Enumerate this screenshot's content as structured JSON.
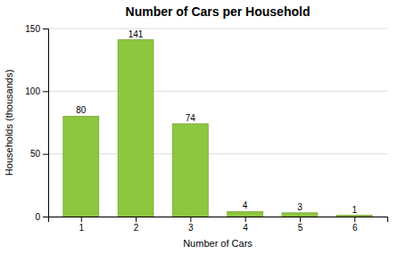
{
  "chart_data": {
    "type": "bar",
    "title": "Number of Cars per Household",
    "xlabel": "Number of Cars",
    "ylabel": "Households (thousands)",
    "x": [
      1,
      2,
      3,
      4,
      5,
      6
    ],
    "values": [
      80,
      141,
      74,
      4,
      3,
      1
    ],
    "color": "#8dc63f",
    "xlim": [
      0.4,
      6.6
    ],
    "xticks": [
      1,
      2,
      3,
      4,
      5,
      6
    ],
    "ylim": [
      0,
      150
    ],
    "yticks": [
      0,
      50,
      100,
      150
    ],
    "grid": true,
    "data_labels": true
  }
}
